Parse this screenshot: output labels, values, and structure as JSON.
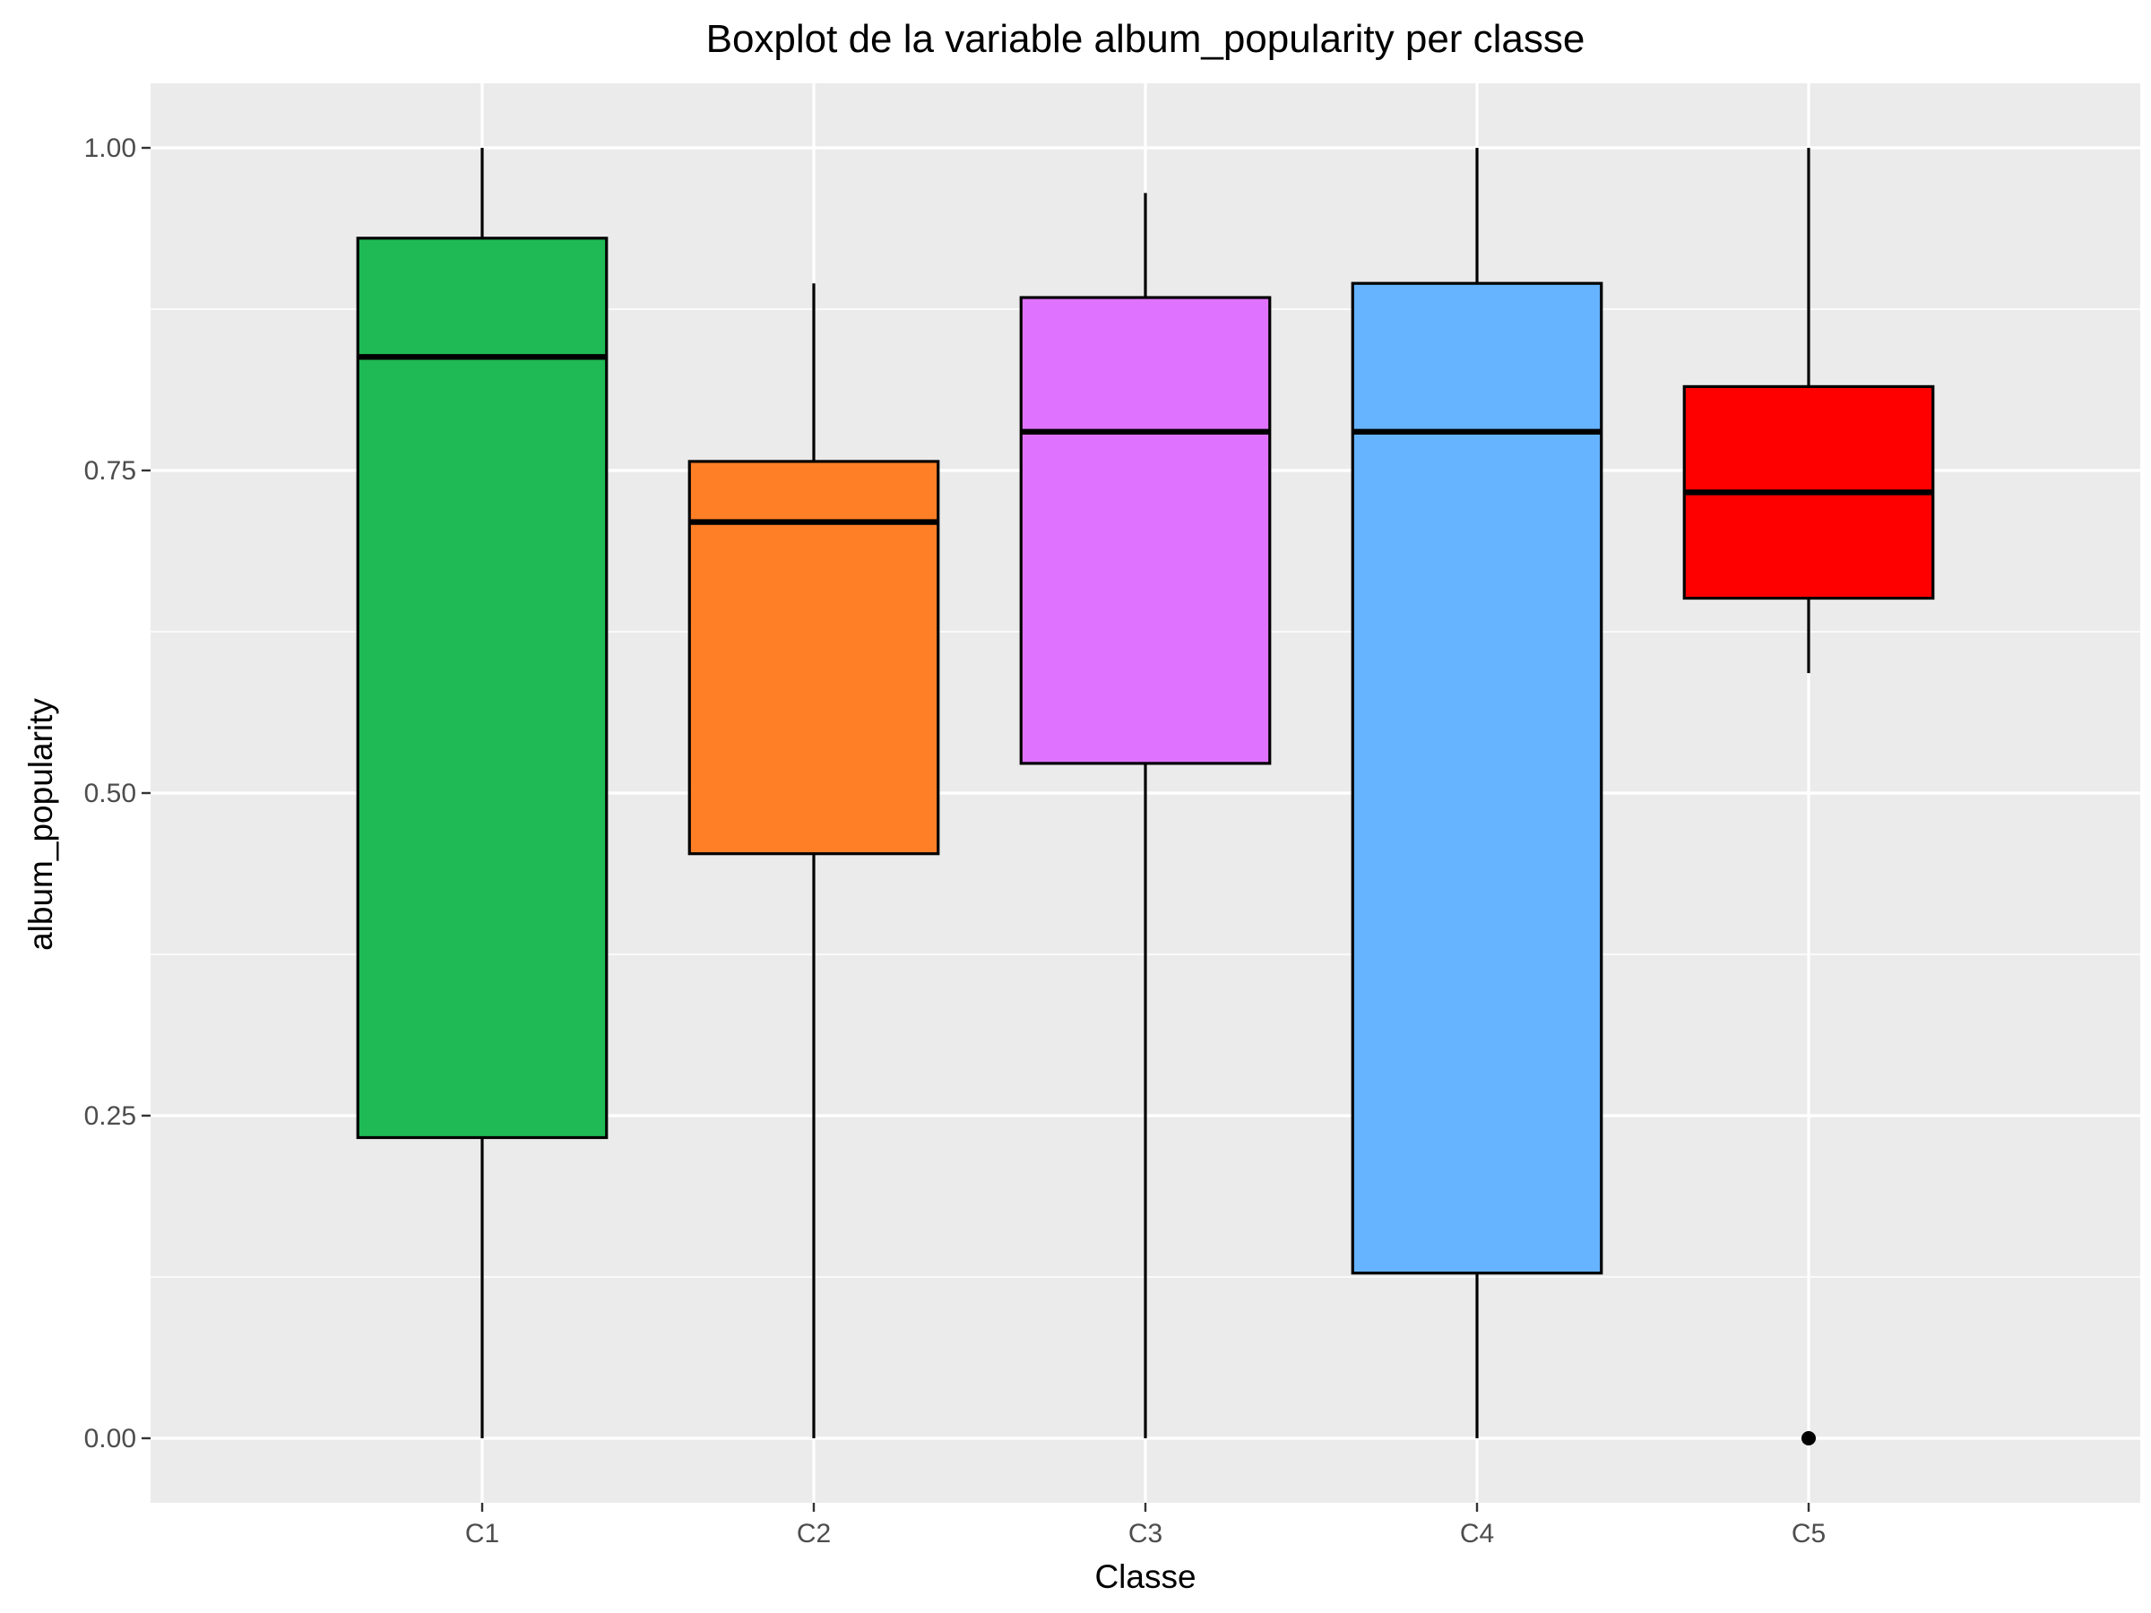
{
  "chart_data": {
    "type": "boxplot",
    "title": "Boxplot de la variable album_popularity per classe",
    "xlabel": "Classe",
    "ylabel": "album_popularity",
    "ylim": [
      -0.05,
      1.05
    ],
    "yticks": [
      "0.00",
      "0.25",
      "0.50",
      "0.75",
      "1.00"
    ],
    "ytick_values": [
      0,
      0.25,
      0.5,
      0.75,
      1.0
    ],
    "grid": true,
    "legend": "none",
    "categories": [
      "C1",
      "C2",
      "C3",
      "C4",
      "C5"
    ],
    "boxes": [
      {
        "category": "C1",
        "whisker_low": 0.0,
        "q1": 0.233,
        "median": 0.838,
        "q3": 0.93,
        "whisker_high": 1.0,
        "outliers": [],
        "color": "#1FBA55"
      },
      {
        "category": "C2",
        "whisker_low": 0.0,
        "q1": 0.453,
        "median": 0.71,
        "q3": 0.757,
        "whisker_high": 0.895,
        "outliers": [],
        "color": "#FF7F27"
      },
      {
        "category": "C3",
        "whisker_low": 0.0,
        "q1": 0.523,
        "median": 0.78,
        "q3": 0.884,
        "whisker_high": 0.965,
        "outliers": [],
        "color": "#DF73FF"
      },
      {
        "category": "C4",
        "whisker_low": 0.0,
        "q1": 0.128,
        "median": 0.78,
        "q3": 0.895,
        "whisker_high": 1.0,
        "outliers": [],
        "color": "#66B3FF"
      },
      {
        "category": "C5",
        "whisker_low": 0.593,
        "q1": 0.651,
        "median": 0.733,
        "q3": 0.815,
        "whisker_high": 1.0,
        "outliers": [
          0.0
        ],
        "color": "#FF0000"
      }
    ],
    "panel_background": "#EBEBEB",
    "grid_color": "#FFFFFF"
  }
}
